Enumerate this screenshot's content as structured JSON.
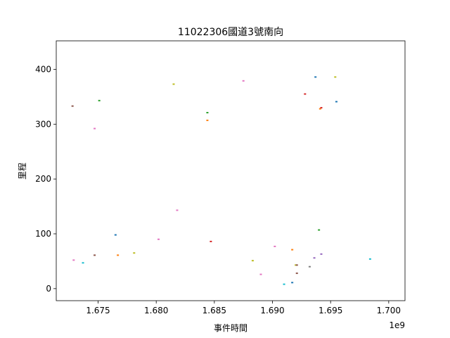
{
  "chart_data": {
    "type": "scatter",
    "title": "11022306國道3號南向",
    "xlabel": "事件時間",
    "ylabel": "里程",
    "x_offset_text": "1e9",
    "xlim": [
      1.6714,
      1.7014
    ],
    "ylim": [
      -22,
      452
    ],
    "xticks": [
      1.675,
      1.68,
      1.685,
      1.69,
      1.695,
      1.7
    ],
    "xtick_labels": [
      "1.675",
      "1.680",
      "1.685",
      "1.690",
      "1.695",
      "1.700"
    ],
    "yticks": [
      0,
      100,
      200,
      300,
      400
    ],
    "ytick_labels": [
      "0",
      "100",
      "200",
      "300",
      "400"
    ],
    "grid": false,
    "points": [
      {
        "x": 1.6728,
        "y": 333,
        "color": "#8c564b"
      },
      {
        "x": 1.6729,
        "y": 52,
        "color": "#e377c2"
      },
      {
        "x": 1.6737,
        "y": 47,
        "color": "#17becf"
      },
      {
        "x": 1.6747,
        "y": 292,
        "color": "#e377c2"
      },
      {
        "x": 1.6747,
        "y": 61,
        "color": "#8c564b"
      },
      {
        "x": 1.6751,
        "y": 343,
        "color": "#2ca02c"
      },
      {
        "x": 1.6765,
        "y": 98,
        "color": "#1f77b4"
      },
      {
        "x": 1.6767,
        "y": 61,
        "color": "#ff7f0e"
      },
      {
        "x": 1.6781,
        "y": 65,
        "color": "#bcbd22"
      },
      {
        "x": 1.6802,
        "y": 90,
        "color": "#e377c2"
      },
      {
        "x": 1.6815,
        "y": 373,
        "color": "#bcbd22"
      },
      {
        "x": 1.6818,
        "y": 143,
        "color": "#e377c2"
      },
      {
        "x": 1.6844,
        "y": 321,
        "color": "#2ca02c"
      },
      {
        "x": 1.6844,
        "y": 307,
        "color": "#ff7f0e"
      },
      {
        "x": 1.6847,
        "y": 86,
        "color": "#d62728"
      },
      {
        "x": 1.6875,
        "y": 379,
        "color": "#e377c2"
      },
      {
        "x": 1.6883,
        "y": 51,
        "color": "#bcbd22"
      },
      {
        "x": 1.689,
        "y": 26,
        "color": "#e377c2"
      },
      {
        "x": 1.6902,
        "y": 77,
        "color": "#e377c2"
      },
      {
        "x": 1.691,
        "y": 8,
        "color": "#17becf"
      },
      {
        "x": 1.6917,
        "y": 71,
        "color": "#ff7f0e"
      },
      {
        "x": 1.6917,
        "y": 11,
        "color": "#1f77b4"
      },
      {
        "x": 1.692,
        "y": 43,
        "color": "#bcbd22"
      },
      {
        "x": 1.6921,
        "y": 43,
        "color": "#8c564b"
      },
      {
        "x": 1.6921,
        "y": 28,
        "color": "#8c564b"
      },
      {
        "x": 1.6928,
        "y": 355,
        "color": "#d62728"
      },
      {
        "x": 1.6932,
        "y": 40,
        "color": "#7f7f7f"
      },
      {
        "x": 1.6936,
        "y": 56,
        "color": "#9467bd"
      },
      {
        "x": 1.6937,
        "y": 386,
        "color": "#1f77b4"
      },
      {
        "x": 1.694,
        "y": 107,
        "color": "#2ca02c"
      },
      {
        "x": 1.6941,
        "y": 328,
        "color": "#ff7f0e"
      },
      {
        "x": 1.6942,
        "y": 330,
        "color": "#d62728"
      },
      {
        "x": 1.6942,
        "y": 63,
        "color": "#9467bd"
      },
      {
        "x": 1.6954,
        "y": 386,
        "color": "#bcbd22"
      },
      {
        "x": 1.6955,
        "y": 341,
        "color": "#1f77b4"
      },
      {
        "x": 1.6984,
        "y": 54,
        "color": "#17becf"
      }
    ]
  }
}
